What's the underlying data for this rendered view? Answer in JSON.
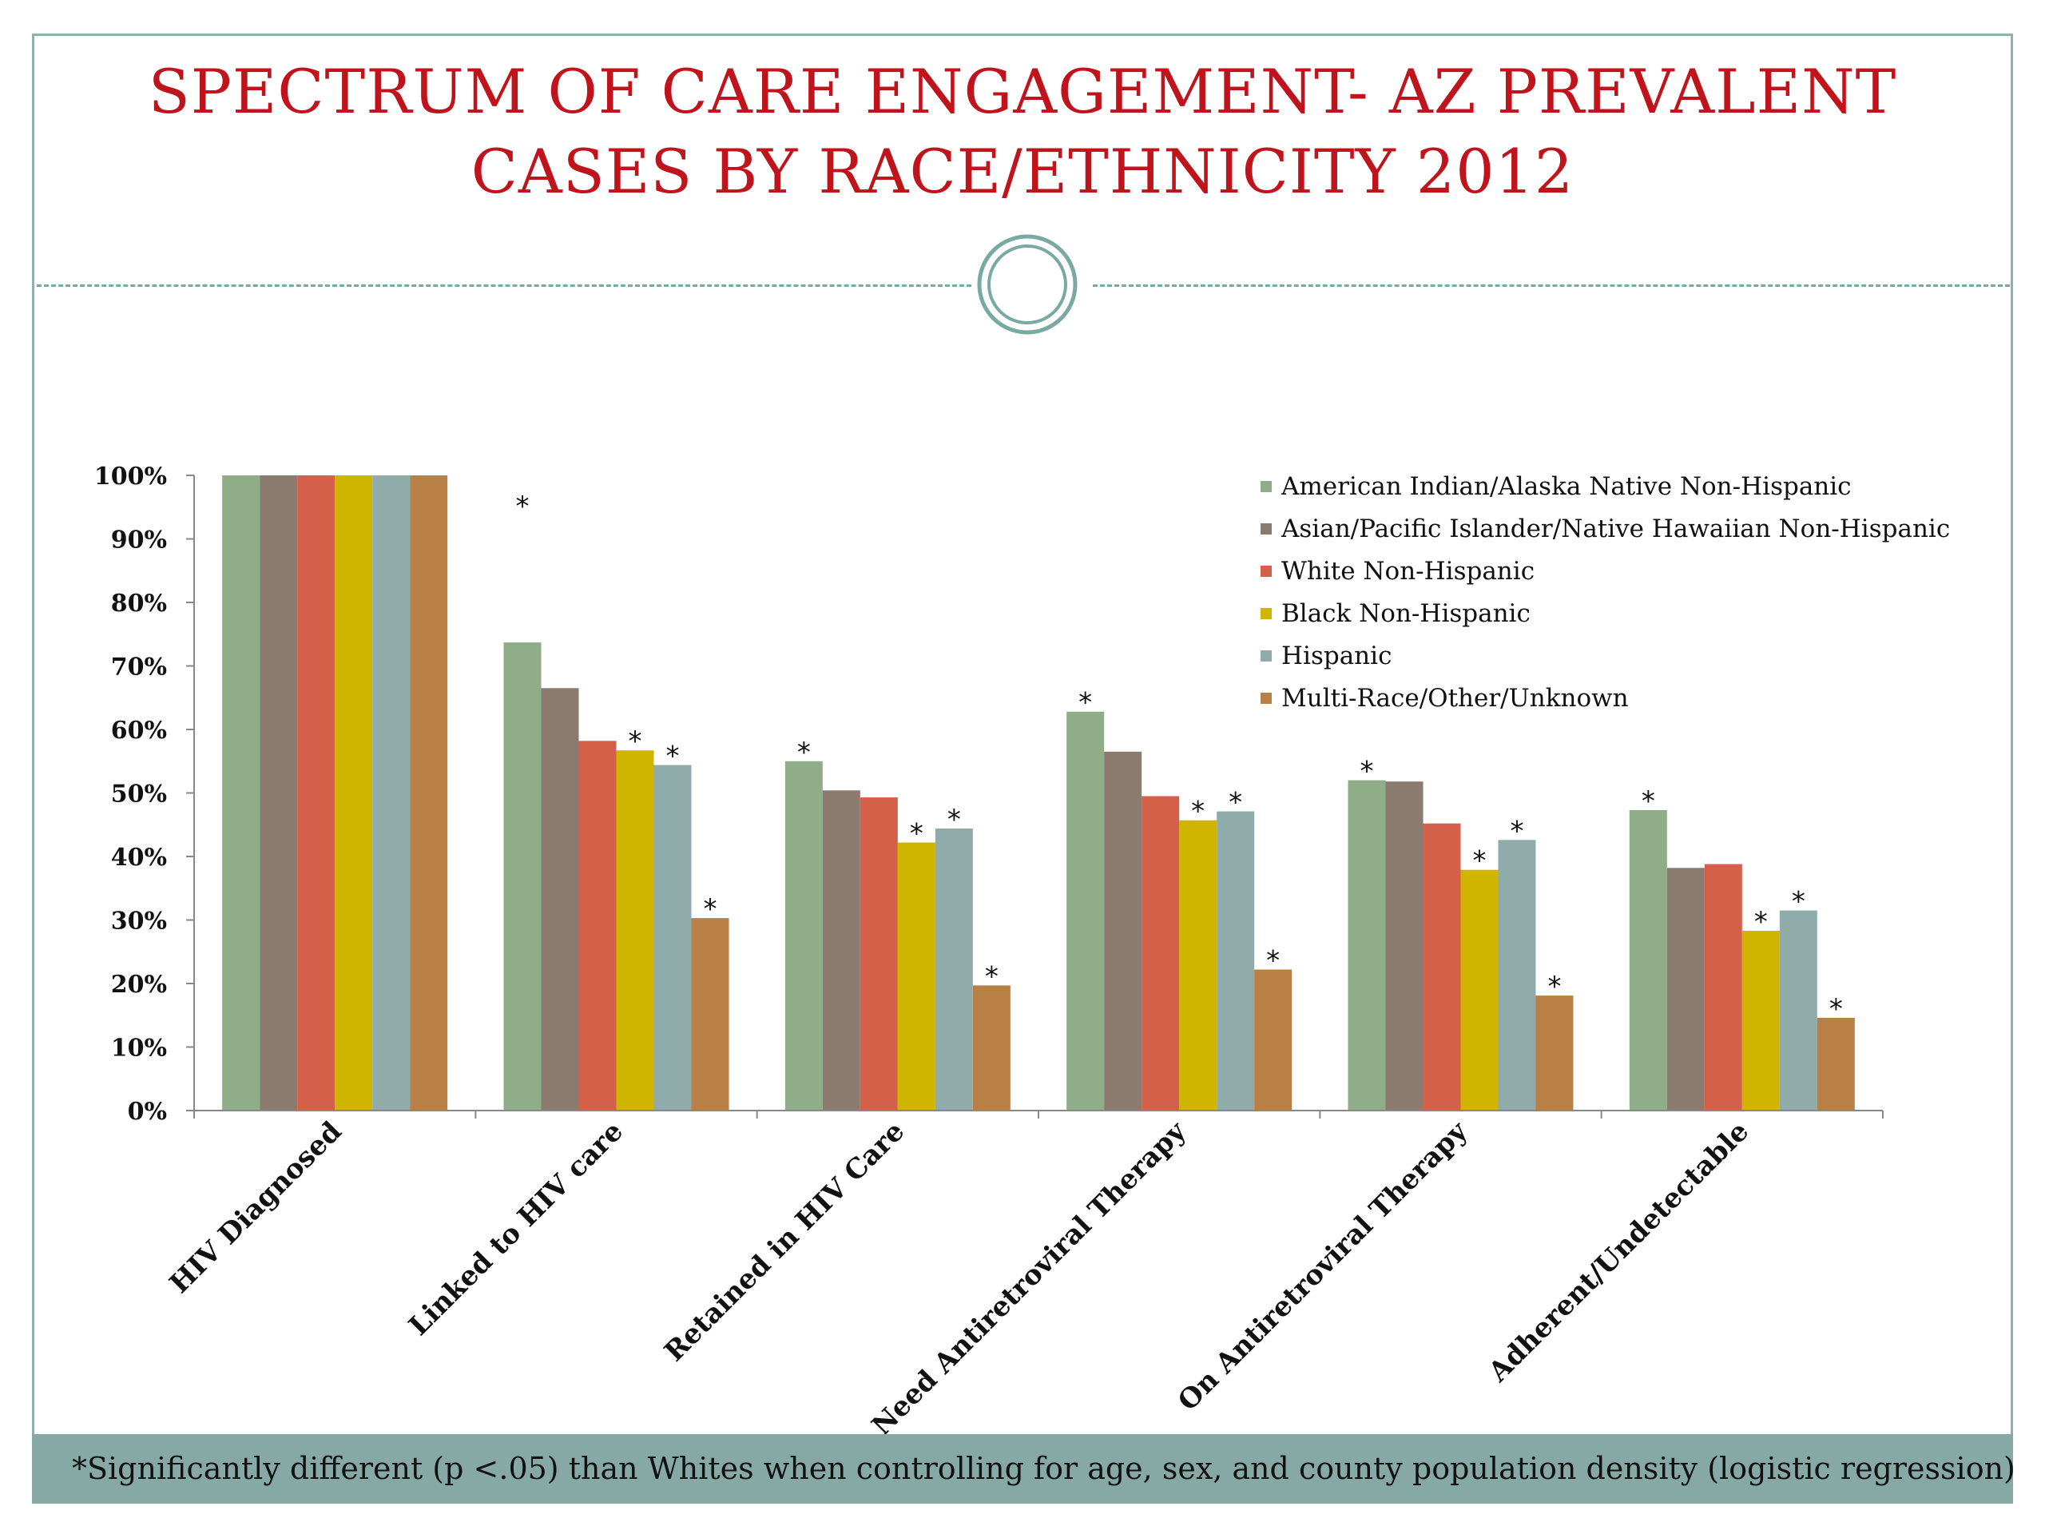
{
  "slide": {
    "title": "SPECTRUM OF CARE ENGAGEMENT- AZ PREVALENT CASES BY RACE/ETHNICITY 2012",
    "footnote": "*Significantly different (p <.05) than Whites when controlling for age, sex, and county population density (logistic regression)"
  },
  "chart_data": {
    "type": "bar",
    "title": "",
    "xlabel": "",
    "ylabel": "",
    "ylim": [
      0,
      100
    ],
    "y_ticks": [
      "0%",
      "10%",
      "20%",
      "30%",
      "40%",
      "50%",
      "60%",
      "70%",
      "80%",
      "90%",
      "100%"
    ],
    "y_tick_values": [
      0,
      10,
      20,
      30,
      40,
      50,
      60,
      70,
      80,
      90,
      100
    ],
    "categories": [
      "HIV Diagnosed",
      "Linked to HIV care",
      "Retained in HIV Care",
      "Need Antiretroviral Therapy",
      "On Antiretroviral Therapy",
      "Adherent/Undetectable"
    ],
    "legend_position": "top-right",
    "grid": false,
    "significance_marker": "*",
    "series": [
      {
        "name": "American Indian/Alaska Native Non-Hispanic",
        "color": "#8fad86",
        "values": [
          100,
          73.7,
          55.0,
          62.8,
          52.0,
          47.3
        ],
        "significant": [
          false,
          true,
          true,
          true,
          true,
          true
        ]
      },
      {
        "name": "Asian/Pacific Islander/Native Hawaiian Non-Hispanic",
        "color": "#8b7a6e",
        "values": [
          100,
          66.5,
          50.4,
          56.5,
          51.8,
          38.2
        ],
        "significant": [
          false,
          false,
          false,
          false,
          false,
          false
        ]
      },
      {
        "name": "White Non-Hispanic",
        "color": "#d5604a",
        "values": [
          100,
          58.2,
          49.3,
          49.5,
          45.2,
          38.8
        ],
        "significant": [
          false,
          false,
          false,
          false,
          false,
          false
        ]
      },
      {
        "name": "Black Non-Hispanic",
        "color": "#cfb400",
        "values": [
          100,
          56.7,
          42.2,
          45.7,
          37.9,
          28.3
        ],
        "significant": [
          false,
          true,
          true,
          true,
          true,
          true
        ]
      },
      {
        "name": "Hispanic",
        "color": "#8fabaa",
        "values": [
          100,
          54.4,
          44.4,
          47.1,
          42.6,
          31.5
        ],
        "significant": [
          false,
          true,
          true,
          true,
          true,
          true
        ]
      },
      {
        "name": "Multi-Race/Other/Unknown",
        "color": "#b98045",
        "values": [
          100,
          30.3,
          19.7,
          22.2,
          18.1,
          14.6
        ],
        "significant": [
          false,
          true,
          true,
          true,
          true,
          true
        ]
      }
    ]
  }
}
